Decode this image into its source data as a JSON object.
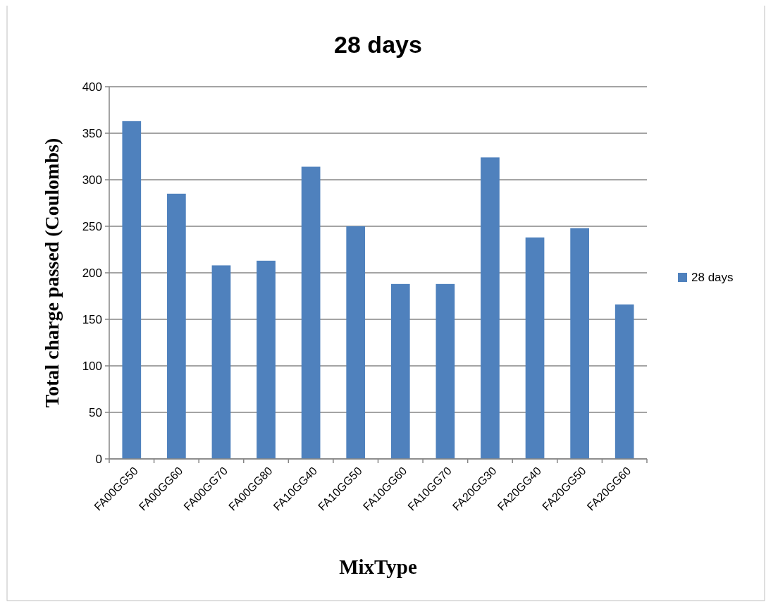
{
  "chart_data": {
    "type": "bar",
    "title": "28 days",
    "xlabel": "MixType",
    "ylabel": "Total charge passed  (Coulombs)",
    "categories": [
      "FA00GG50",
      "FA00GG60",
      "FA00GG70",
      "FA00GG80",
      "FA10GG40",
      "FA10GG50",
      "FA10GG60",
      "FA10GG70",
      "FA20GG30",
      "FA20GG40",
      "FA20GG50",
      "FA20GG60"
    ],
    "series": [
      {
        "name": "28 days",
        "color": "#4f81bd",
        "values": [
          363,
          285,
          208,
          213,
          314,
          250,
          188,
          188,
          324,
          238,
          248,
          166
        ]
      }
    ],
    "ylim": [
      0,
      400
    ],
    "yticks": [
      0,
      50,
      100,
      150,
      200,
      250,
      300,
      350,
      400
    ],
    "grid": "y",
    "legend": "right"
  }
}
